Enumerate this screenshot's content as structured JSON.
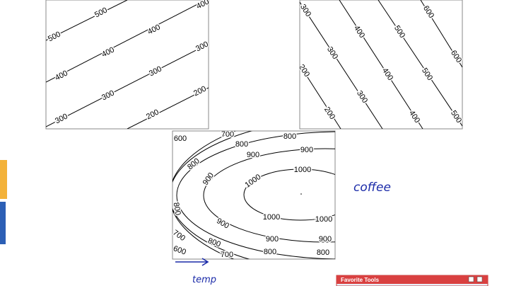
{
  "panels": [
    {
      "labels": [
        "500",
        "500",
        "400",
        "400",
        "400",
        "400",
        "300",
        "300",
        "300",
        "300",
        "200",
        "200"
      ]
    },
    {
      "labels": [
        "300",
        "400",
        "500",
        "600",
        "300",
        "400",
        "500",
        "600",
        "200",
        "300",
        "400",
        "500",
        "200"
      ]
    },
    {
      "labels": [
        "600",
        "700",
        "800",
        "800",
        "900",
        "800",
        "900",
        "1000",
        "900",
        "1000",
        "800",
        "1000",
        "1000",
        "900",
        "900",
        "900",
        "700",
        "800",
        "600",
        "700",
        "800",
        "800"
      ]
    }
  ],
  "annotations": {
    "y_axis": "coffee",
    "x_axis": "temp"
  },
  "toolbar": {
    "title": "Favorite Tools"
  }
}
